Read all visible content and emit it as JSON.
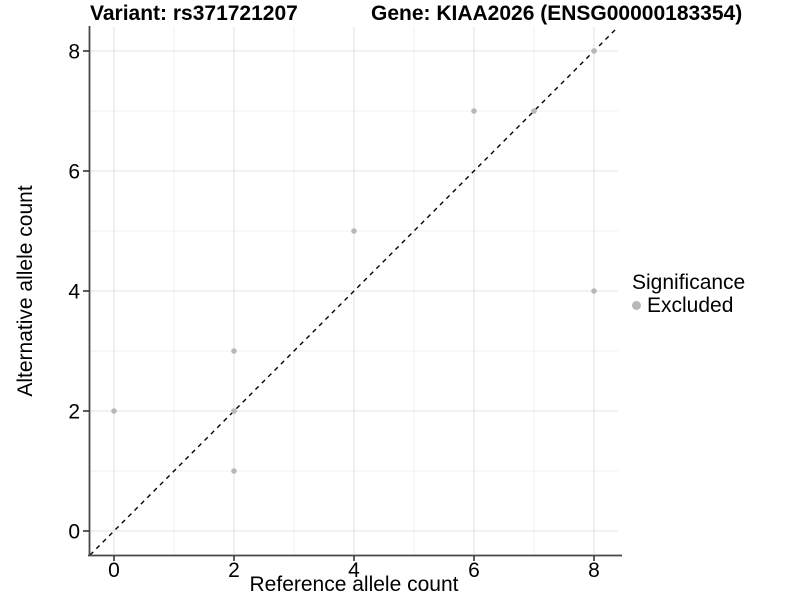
{
  "header": {
    "title_left": "Variant: rs371721207",
    "title_right": "Gene: KIAA2026 (ENSG00000183354)"
  },
  "chart_data": {
    "type": "scatter",
    "title_left": "Variant: rs371721207",
    "title_right": "Gene: KIAA2026 (ENSG00000183354)",
    "xlabel": "Reference allele count",
    "ylabel": "Alternative allele count",
    "xlim": [
      -0.4,
      8.4
    ],
    "ylim": [
      -0.4,
      8.4
    ],
    "x_ticks": [
      0,
      2,
      4,
      6,
      8
    ],
    "y_ticks": [
      0,
      2,
      4,
      6,
      8
    ],
    "x_minor_ticks": [
      1,
      3,
      5,
      7
    ],
    "y_minor_ticks": [
      1,
      3,
      5,
      7
    ],
    "grid": "major+minor, light gray on white",
    "series": [
      {
        "name": "Excluded",
        "color": "#b8b8b8",
        "points": [
          [
            0,
            2
          ],
          [
            2,
            1
          ],
          [
            2,
            2
          ],
          [
            2,
            3
          ],
          [
            4,
            5
          ],
          [
            6,
            7
          ],
          [
            7,
            7
          ],
          [
            8,
            4
          ],
          [
            8,
            8
          ]
        ]
      }
    ],
    "reference_line": {
      "kind": "identity y=x",
      "style": "dashed",
      "color": "#000000"
    },
    "legend": {
      "position": "right",
      "title": "Significance",
      "items": [
        {
          "label": "Excluded",
          "color": "#b8b8b8"
        }
      ]
    },
    "style": {
      "major_grid_color": "#e3e3e3",
      "minor_grid_color": "#f0f0f0",
      "axis_line_color": "#474747",
      "tick_color": "#333333",
      "point_radius": 2.8,
      "text_color": "#000000"
    }
  }
}
